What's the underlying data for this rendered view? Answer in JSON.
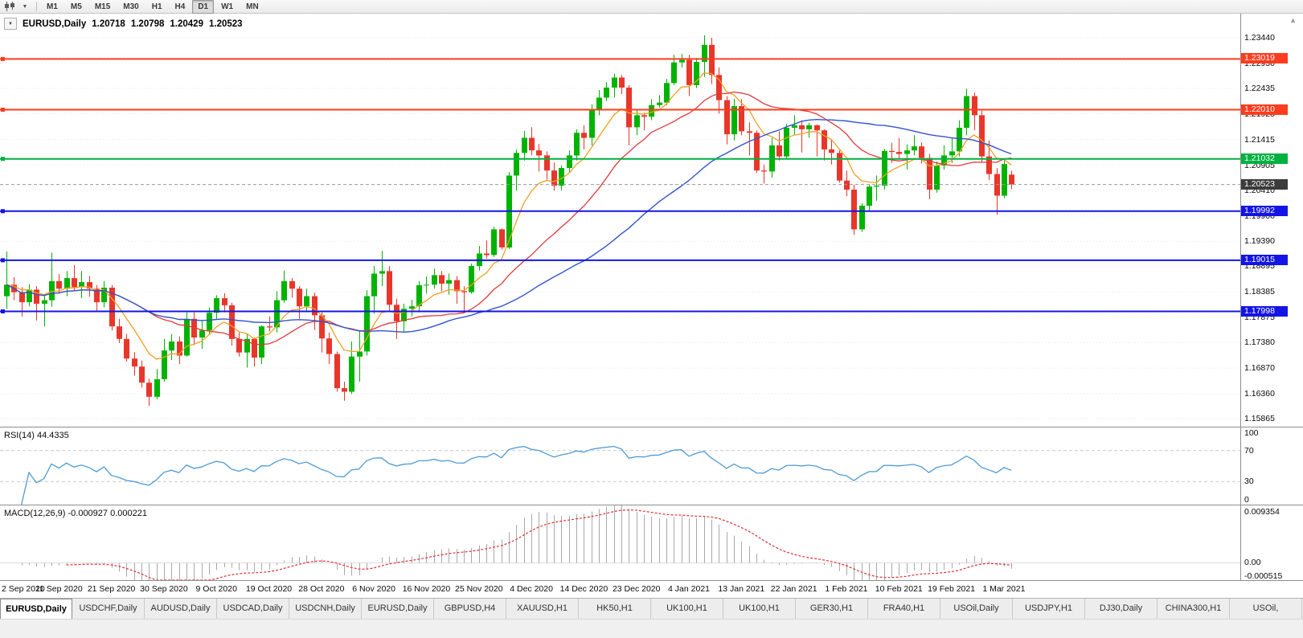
{
  "toolbar": {
    "timeframes": [
      "M1",
      "M5",
      "M15",
      "M30",
      "H1",
      "H4",
      "D1",
      "W1",
      "MN"
    ],
    "active_timeframe": "D1",
    "icons": [
      "chart-type-icon",
      "chart-type-dropdown-icon"
    ]
  },
  "chart": {
    "symbol": "EURUSD,Daily",
    "open": "1.20718",
    "high": "1.20798",
    "low": "1.20429",
    "close": "1.20523"
  },
  "rsi": {
    "name": "RSI(14)",
    "value": "44.4335",
    "axis": [
      "100",
      "70",
      "30",
      "0"
    ]
  },
  "macd": {
    "name": "MACD(12,26,9)",
    "value_main": "-0.000927",
    "value_signal": "0.000221",
    "axis_top": "0.009354",
    "axis_zero": "0.00",
    "axis_bottom": "-0.000515"
  },
  "tabs": {
    "active_index": 0,
    "items": [
      "EURUSD,Daily",
      "USDCHF,Daily",
      "AUDUSD,Daily",
      "USDCAD,Daily",
      "USDCNH,Daily",
      "EURUSD,Daily",
      "GBPUSD,H4",
      "XAUUSD,H1",
      "HK50,H1",
      "UK100,H1",
      "UK100,H1",
      "GER30,H1",
      "FRA40,H1",
      "USOil,Daily",
      "USDJPY,H1",
      "DJ30,Daily",
      "CHINA300,H1",
      "USOil,"
    ]
  },
  "colors": {
    "bull": "#00b300",
    "bear": "#e8362b",
    "ma_fast": "#efa023",
    "ma_mid": "#e03a3a",
    "ma_slow": "#3353d0",
    "rsi": "#4f9bd5",
    "macd_hist": "#a9a9a9",
    "macd_signal": "#dd3333",
    "grid": "#e9e9e9"
  },
  "chart_data": {
    "type": "candlestick",
    "symbol": "EURUSD",
    "timeframe": "Daily",
    "title": "EURUSD,Daily 1.20718 1.20798 1.20429 1.20523",
    "price_axis": [
      "1.23440",
      "1.22930",
      "1.22435",
      "1.21925",
      "1.21415",
      "1.20905",
      "1.20410",
      "1.19900",
      "1.19390",
      "1.18895",
      "1.18385",
      "1.17875",
      "1.17380",
      "1.16870",
      "1.16360",
      "1.15865"
    ],
    "x_labels": [
      "2 Sep 2020",
      "11 Sep 2020",
      "21 Sep 2020",
      "30 Sep 2020",
      "9 Oct 2020",
      "19 Oct 2020",
      "28 Oct 2020",
      "6 Nov 2020",
      "16 Nov 2020",
      "25 Nov 2020",
      "4 Dec 2020",
      "14 Dec 2020",
      "23 Dec 2020",
      "4 Jan 2021",
      "13 Jan 2021",
      "22 Jan 2021",
      "1 Feb 2021",
      "10 Feb 2021",
      "19 Feb 2021",
      "1 Mar 2021"
    ],
    "candles_per_label": 7,
    "levels": [
      {
        "label": "1.23019",
        "value": 1.23019,
        "kind": "resistance",
        "color": "#ff3c1e"
      },
      {
        "label": "1.22010",
        "value": 1.2201,
        "kind": "resistance",
        "color": "#ff3c1e"
      },
      {
        "label": "1.21032",
        "value": 1.21032,
        "kind": "pivot",
        "color": "#00b140"
      },
      {
        "label": "1.20523",
        "value": 1.20523,
        "kind": "current-price",
        "color": "#3c3c3c"
      },
      {
        "label": "1.19992",
        "value": 1.19992,
        "kind": "support",
        "color": "#1414e6"
      },
      {
        "label": "1.19015",
        "value": 1.19015,
        "kind": "support",
        "color": "#1414e6"
      },
      {
        "label": "1.17998",
        "value": 1.17998,
        "kind": "support",
        "color": "#1414e6"
      }
    ],
    "candles": [
      [
        1.183,
        1.1919,
        1.1805,
        1.1853
      ],
      [
        1.1853,
        1.1868,
        1.1822,
        1.1838
      ],
      [
        1.1838,
        1.1848,
        1.179,
        1.1818
      ],
      [
        1.1818,
        1.1854,
        1.181,
        1.1843
      ],
      [
        1.1843,
        1.185,
        1.1782,
        1.1815
      ],
      [
        1.1815,
        1.1833,
        1.177,
        1.1822
      ],
      [
        1.1822,
        1.1917,
        1.1809,
        1.186
      ],
      [
        1.186,
        1.1874,
        1.1835,
        1.1845
      ],
      [
        1.1845,
        1.188,
        1.183,
        1.1866
      ],
      [
        1.1866,
        1.1892,
        1.184,
        1.1848
      ],
      [
        1.1848,
        1.188,
        1.1826,
        1.1858
      ],
      [
        1.1858,
        1.187,
        1.1829,
        1.1845
      ],
      [
        1.1845,
        1.1852,
        1.18,
        1.1818
      ],
      [
        1.1818,
        1.186,
        1.1808,
        1.1847
      ],
      [
        1.1847,
        1.1852,
        1.1762,
        1.177
      ],
      [
        1.177,
        1.1785,
        1.1737,
        1.1745
      ],
      [
        1.1745,
        1.1755,
        1.17,
        1.1706
      ],
      [
        1.1706,
        1.1719,
        1.1672,
        1.169
      ],
      [
        1.169,
        1.1702,
        1.1648,
        1.1658
      ],
      [
        1.1658,
        1.1666,
        1.1612,
        1.163
      ],
      [
        1.163,
        1.1685,
        1.1625,
        1.1665
      ],
      [
        1.1665,
        1.1745,
        1.166,
        1.1722
      ],
      [
        1.1722,
        1.1755,
        1.1703,
        1.174
      ],
      [
        1.174,
        1.175,
        1.1695,
        1.1712
      ],
      [
        1.1712,
        1.1798,
        1.171,
        1.1785
      ],
      [
        1.1785,
        1.1798,
        1.1733,
        1.1748
      ],
      [
        1.1748,
        1.1782,
        1.1725,
        1.1762
      ],
      [
        1.1762,
        1.1808,
        1.1755,
        1.1797
      ],
      [
        1.1797,
        1.1832,
        1.1785,
        1.1826
      ],
      [
        1.1826,
        1.1836,
        1.1798,
        1.1812
      ],
      [
        1.1812,
        1.1817,
        1.1732,
        1.1745
      ],
      [
        1.1745,
        1.1758,
        1.171,
        1.1718
      ],
      [
        1.1718,
        1.1755,
        1.1688,
        1.1745
      ],
      [
        1.1745,
        1.1748,
        1.169,
        1.1708
      ],
      [
        1.1708,
        1.1772,
        1.1695,
        1.177
      ],
      [
        1.177,
        1.179,
        1.176,
        1.1768
      ],
      [
        1.1768,
        1.184,
        1.1758,
        1.1822
      ],
      [
        1.1822,
        1.1881,
        1.1817,
        1.186
      ],
      [
        1.186,
        1.1866,
        1.1827,
        1.1845
      ],
      [
        1.1845,
        1.185,
        1.1785,
        1.181
      ],
      [
        1.181,
        1.1845,
        1.18,
        1.183
      ],
      [
        1.183,
        1.1837,
        1.1763,
        1.1792
      ],
      [
        1.1792,
        1.1798,
        1.1718,
        1.1746
      ],
      [
        1.1746,
        1.1758,
        1.1695,
        1.1715
      ],
      [
        1.1715,
        1.172,
        1.164,
        1.1647
      ],
      [
        1.1647,
        1.166,
        1.1622,
        1.164
      ],
      [
        1.164,
        1.174,
        1.1636,
        1.171
      ],
      [
        1.171,
        1.176,
        1.166,
        1.172
      ],
      [
        1.172,
        1.1842,
        1.1712,
        1.183
      ],
      [
        1.183,
        1.189,
        1.1795,
        1.1875
      ],
      [
        1.1875,
        1.192,
        1.185,
        1.188
      ],
      [
        1.188,
        1.189,
        1.18,
        1.1813
      ],
      [
        1.1813,
        1.1825,
        1.1745,
        1.178
      ],
      [
        1.178,
        1.1815,
        1.1758,
        1.1805
      ],
      [
        1.1805,
        1.1823,
        1.179,
        1.181
      ],
      [
        1.181,
        1.186,
        1.18,
        1.1852
      ],
      [
        1.1852,
        1.1869,
        1.1835,
        1.1853
      ],
      [
        1.1853,
        1.1885,
        1.1845,
        1.1872
      ],
      [
        1.1872,
        1.188,
        1.184,
        1.1855
      ],
      [
        1.1855,
        1.1875,
        1.1833,
        1.1862
      ],
      [
        1.1862,
        1.187,
        1.1815,
        1.184
      ],
      [
        1.184,
        1.185,
        1.18,
        1.1838
      ],
      [
        1.1838,
        1.1895,
        1.1835,
        1.189
      ],
      [
        1.189,
        1.193,
        1.1881,
        1.1915
      ],
      [
        1.1915,
        1.1941,
        1.1905,
        1.1912
      ],
      [
        1.1912,
        1.1968,
        1.1908,
        1.1963
      ],
      [
        1.1963,
        1.1965,
        1.1923,
        1.1927
      ],
      [
        1.1927,
        1.2077,
        1.1924,
        1.207
      ],
      [
        1.207,
        1.2122,
        1.204,
        1.2115
      ],
      [
        1.2115,
        1.2159,
        1.21,
        1.2145
      ],
      [
        1.2145,
        1.2166,
        1.211,
        1.212
      ],
      [
        1.212,
        1.2133,
        1.2078,
        1.211
      ],
      [
        1.211,
        1.2118,
        1.2062,
        1.208
      ],
      [
        1.208,
        1.2096,
        1.204,
        1.205
      ],
      [
        1.205,
        1.209,
        1.204,
        1.2085
      ],
      [
        1.2085,
        1.212,
        1.2075,
        1.211
      ],
      [
        1.211,
        1.2162,
        1.21,
        1.2155
      ],
      [
        1.2155,
        1.217,
        1.2122,
        1.2145
      ],
      [
        1.2145,
        1.2212,
        1.213,
        1.22
      ],
      [
        1.22,
        1.224,
        1.219,
        1.2225
      ],
      [
        1.2225,
        1.2256,
        1.2218,
        1.2245
      ],
      [
        1.2245,
        1.2273,
        1.2225,
        1.2265
      ],
      [
        1.2265,
        1.227,
        1.2232,
        1.2245
      ],
      [
        1.2245,
        1.225,
        1.213,
        1.2166
      ],
      [
        1.2166,
        1.22,
        1.215,
        1.219
      ],
      [
        1.219,
        1.2195,
        1.216,
        1.2187
      ],
      [
        1.2187,
        1.2222,
        1.218,
        1.221
      ],
      [
        1.221,
        1.223,
        1.2205,
        1.2215
      ],
      [
        1.2215,
        1.2262,
        1.221,
        1.2254
      ],
      [
        1.2254,
        1.231,
        1.225,
        1.2295
      ],
      [
        1.2295,
        1.2312,
        1.2285,
        1.23
      ],
      [
        1.23,
        1.231,
        1.2228,
        1.225
      ],
      [
        1.225,
        1.2304,
        1.2244,
        1.2296
      ],
      [
        1.2296,
        1.2349,
        1.2266,
        1.233
      ],
      [
        1.233,
        1.2344,
        1.2252,
        1.227
      ],
      [
        1.227,
        1.2285,
        1.2193,
        1.222
      ],
      [
        1.222,
        1.2228,
        1.2132,
        1.2152
      ],
      [
        1.2152,
        1.2223,
        1.214,
        1.2208
      ],
      [
        1.2208,
        1.2222,
        1.215,
        1.2158
      ],
      [
        1.2158,
        1.2176,
        1.211,
        1.2155
      ],
      [
        1.2155,
        1.216,
        1.2075,
        1.208
      ],
      [
        1.208,
        1.2092,
        1.2054,
        1.2078
      ],
      [
        1.2078,
        1.2145,
        1.2066,
        1.213
      ],
      [
        1.213,
        1.2158,
        1.21,
        1.2108
      ],
      [
        1.2108,
        1.2173,
        1.2105,
        1.2165
      ],
      [
        1.2165,
        1.219,
        1.2152,
        1.217
      ],
      [
        1.217,
        1.218,
        1.2116,
        1.2162
      ],
      [
        1.2162,
        1.2175,
        1.2145,
        1.217
      ],
      [
        1.217,
        1.2172,
        1.2108,
        1.216
      ],
      [
        1.216,
        1.2162,
        1.21,
        1.2122
      ],
      [
        1.2122,
        1.2142,
        1.2092,
        1.2115
      ],
      [
        1.2115,
        1.212,
        1.2056,
        1.206
      ],
      [
        1.206,
        1.208,
        1.2029,
        1.2042
      ],
      [
        1.2042,
        1.2052,
        1.1952,
        1.1963
      ],
      [
        1.1963,
        1.2015,
        1.1958,
        1.201
      ],
      [
        1.201,
        1.2052,
        1.2,
        1.2048
      ],
      [
        1.2048,
        1.207,
        1.202,
        1.205
      ],
      [
        1.205,
        1.2123,
        1.2042,
        1.2119
      ],
      [
        1.2119,
        1.2135,
        1.2095,
        1.2117
      ],
      [
        1.2117,
        1.2145,
        1.2102,
        1.2113
      ],
      [
        1.2113,
        1.2132,
        1.2082,
        1.212
      ],
      [
        1.212,
        1.215,
        1.211,
        1.2128
      ],
      [
        1.2128,
        1.2136,
        1.2094,
        1.2105
      ],
      [
        1.2105,
        1.2113,
        1.2023,
        1.2042
      ],
      [
        1.2042,
        1.2098,
        1.2036,
        1.209
      ],
      [
        1.209,
        1.213,
        1.2082,
        1.211
      ],
      [
        1.211,
        1.2145,
        1.2095,
        1.2118
      ],
      [
        1.2118,
        1.218,
        1.2108,
        1.2165
      ],
      [
        1.2165,
        1.2243,
        1.215,
        1.2228
      ],
      [
        1.2228,
        1.2235,
        1.216,
        1.219
      ],
      [
        1.219,
        1.2199,
        1.2095,
        1.2108
      ],
      [
        1.2108,
        1.214,
        1.2061,
        1.2073
      ],
      [
        1.2073,
        1.2085,
        1.1992,
        1.203
      ],
      [
        1.203,
        1.2102,
        1.2025,
        1.2093
      ],
      [
        1.20718,
        1.20798,
        1.20429,
        1.20523
      ]
    ]
  }
}
